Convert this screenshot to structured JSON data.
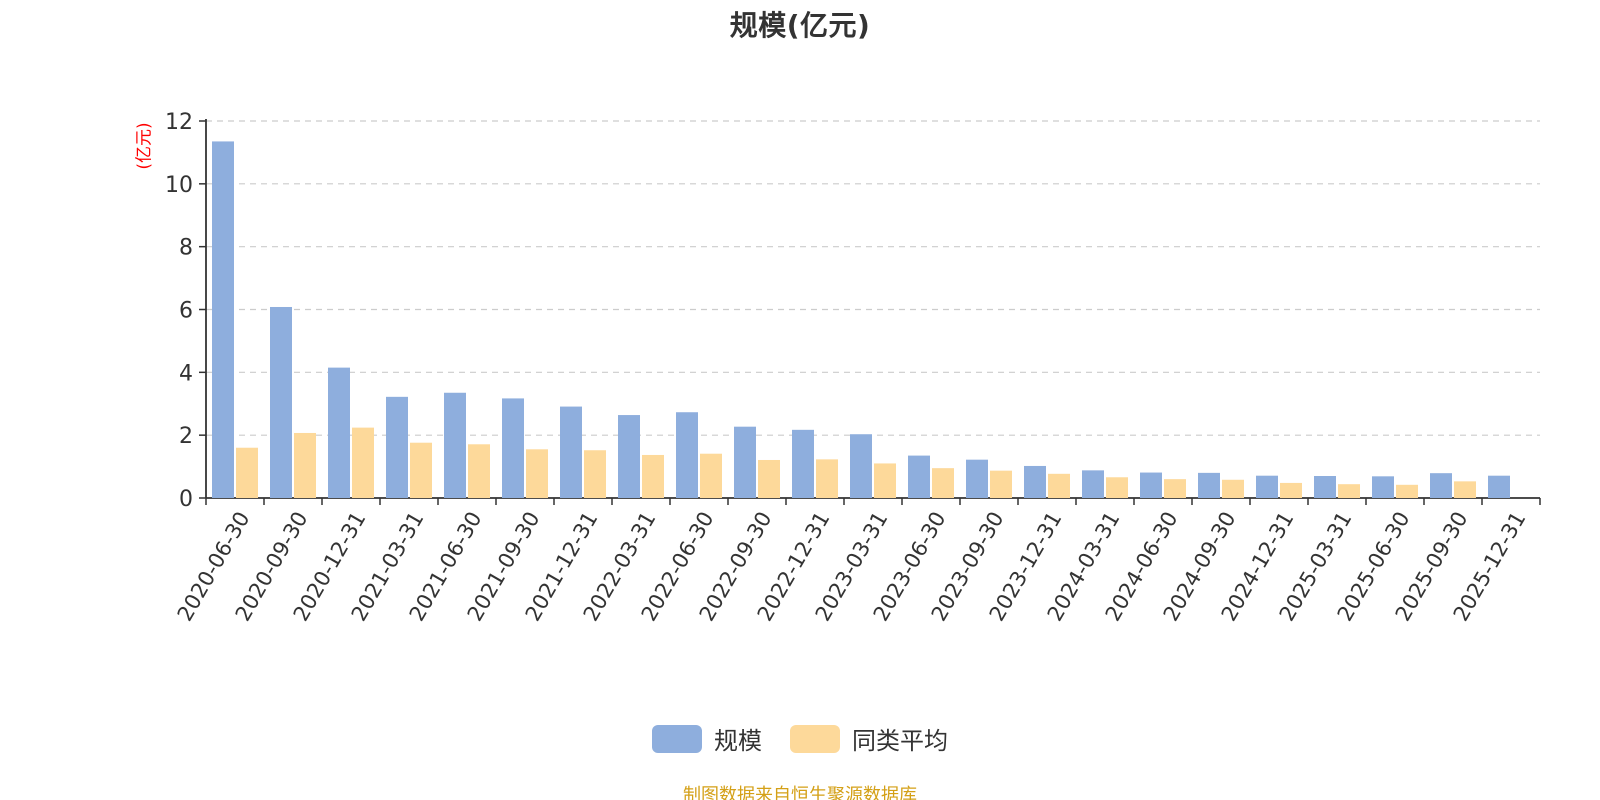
{
  "chart_data": {
    "type": "bar",
    "title": "规模(亿元)",
    "ylabel": "(亿元)",
    "xlabel": "",
    "ylim": [
      0,
      12
    ],
    "yticks": [
      0,
      2,
      4,
      6,
      8,
      10,
      12
    ],
    "grid": true,
    "legend_position": "bottom",
    "categories": [
      "2020-06-30",
      "2020-09-30",
      "2020-12-31",
      "2021-03-31",
      "2021-06-30",
      "2021-09-30",
      "2021-12-31",
      "2022-03-31",
      "2022-06-30",
      "2022-09-30",
      "2022-12-31",
      "2023-03-31",
      "2023-06-30",
      "2023-09-30",
      "2023-12-31",
      "2024-03-31",
      "2024-06-30",
      "2024-09-30",
      "2024-12-31",
      "2025-03-31",
      "2025-06-30",
      "2025-09-30",
      "2025-12-31"
    ],
    "series": [
      {
        "name": "规模",
        "color": "#8eaedd",
        "values": [
          11.35,
          6.08,
          4.15,
          3.22,
          3.35,
          3.17,
          2.91,
          2.64,
          2.73,
          2.27,
          2.17,
          2.03,
          1.35,
          1.22,
          1.02,
          0.88,
          0.81,
          0.8,
          0.71,
          0.7,
          0.69,
          0.79,
          0.71
        ]
      },
      {
        "name": "同类平均",
        "color": "#fdd99a",
        "values": [
          1.6,
          2.07,
          2.24,
          1.76,
          1.71,
          1.55,
          1.52,
          1.37,
          1.41,
          1.21,
          1.23,
          1.1,
          0.95,
          0.87,
          0.77,
          0.66,
          0.6,
          0.58,
          0.48,
          0.44,
          0.42,
          0.53,
          null
        ]
      }
    ]
  },
  "source_note": "制图数据来自恒生聚源数据库"
}
